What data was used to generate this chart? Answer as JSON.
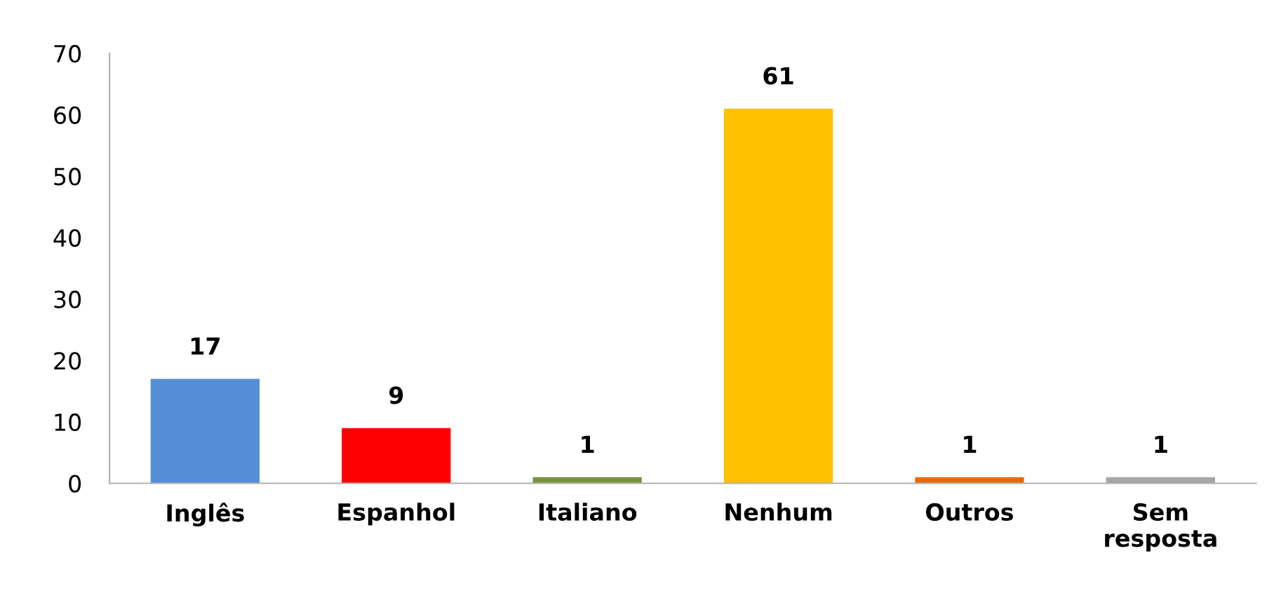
{
  "chart_data": {
    "type": "bar",
    "categories": [
      "Inglês",
      "Espanhol",
      "Italiano",
      "Nenhum",
      "Outros",
      "Sem\nresposta"
    ],
    "values": [
      17,
      9,
      1,
      61,
      1,
      1
    ],
    "colors": [
      "#558ed5",
      "#ff0000",
      "#77933c",
      "#ffc000",
      "#e46c0a",
      "#a6a6a6"
    ],
    "ylim": [
      0,
      70
    ],
    "yticks": [
      0,
      10,
      20,
      30,
      40,
      50,
      60,
      70
    ],
    "data_labels": true,
    "grid": false,
    "legend": false
  }
}
